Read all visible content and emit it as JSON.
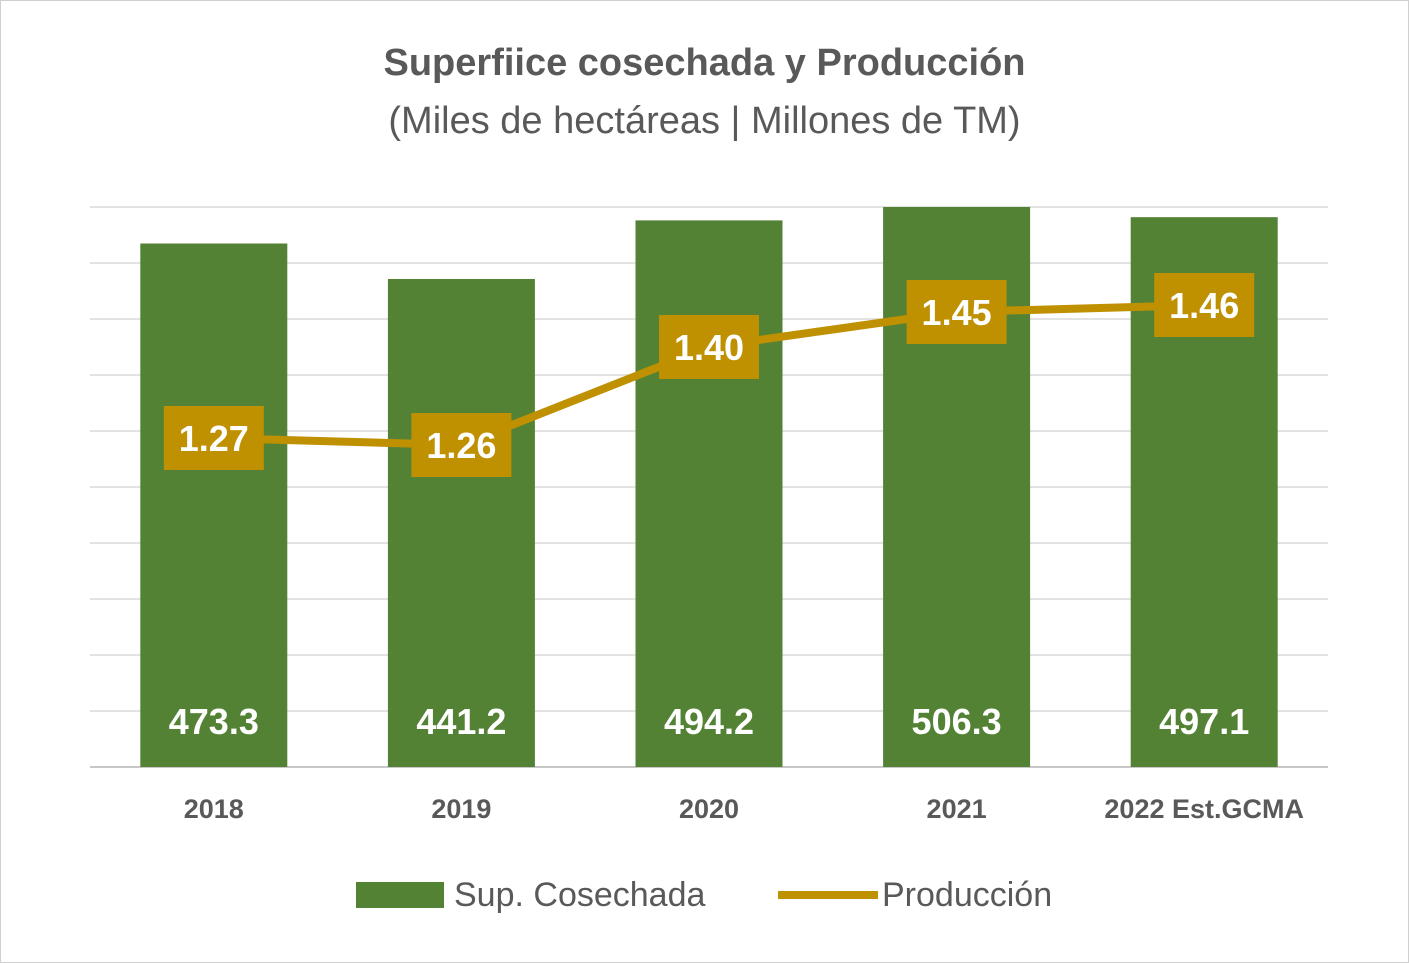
{
  "chart_data": {
    "type": "bar",
    "title": "Superfiice cosechada y Producción",
    "subtitle": "(Miles de hectáreas | Millones de TM)",
    "categories": [
      "2018",
      "2019",
      "2020",
      "2021",
      "2022 Est.GCMA"
    ],
    "series": [
      {
        "name": "Sup. Cosechada",
        "type": "bar",
        "axis": "primary",
        "color": "#548235",
        "values": [
          473.3,
          441.2,
          494.2,
          506.3,
          497.1
        ],
        "labels": [
          "473.3",
          "441.2",
          "494.2",
          "506.3",
          "497.1"
        ]
      },
      {
        "name": "Producción",
        "type": "line",
        "axis": "secondary",
        "color": "#BF9000",
        "values": [
          1.27,
          1.26,
          1.4,
          1.45,
          1.46
        ],
        "labels": [
          "1.27",
          "1.26",
          "1.40",
          "1.45",
          "1.46"
        ]
      }
    ],
    "ylim": [
      0,
      506.3
    ],
    "y2lim": [
      0.8,
      1.6
    ],
    "grid": true,
    "legend": "bottom"
  }
}
